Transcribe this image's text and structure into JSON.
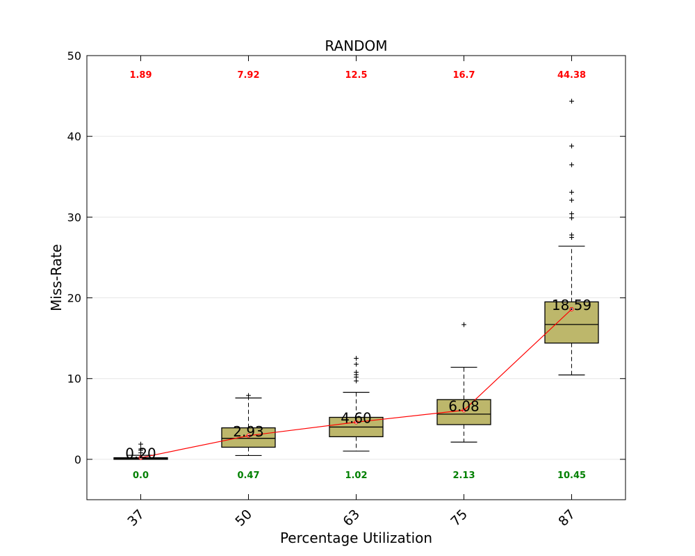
{
  "chart_data": {
    "type": "box",
    "title": "RANDOM",
    "xlabel": "Percentage Utilization",
    "ylabel": "Miss-Rate",
    "ylim": [
      -5,
      50
    ],
    "yticks": [
      0,
      10,
      20,
      30,
      40,
      50
    ],
    "categories": [
      "37",
      "50",
      "63",
      "75",
      "87"
    ],
    "grid": "horizontal",
    "colors": {
      "box_fill": "#bdb76b",
      "mean_line": "#ff0000",
      "max_text": "#ff0000",
      "min_text": "#008000"
    },
    "boxes": [
      {
        "category": "37",
        "q1": 0.0,
        "median": 0.1,
        "q3": 0.2,
        "whisker_low": 0.0,
        "whisker_high": 0.5,
        "mean": 0.2,
        "mean_label": "0.20",
        "max_label": "1.89",
        "min_label": "0.0",
        "fliers": [
          0.8,
          1.1,
          1.3,
          1.89
        ]
      },
      {
        "category": "50",
        "q1": 1.5,
        "median": 2.6,
        "q3": 3.9,
        "whisker_low": 0.47,
        "whisker_high": 7.6,
        "mean": 2.93,
        "mean_label": "2.93",
        "max_label": "7.92",
        "min_label": "0.47",
        "fliers": [
          7.92
        ]
      },
      {
        "category": "63",
        "q1": 2.8,
        "median": 4.0,
        "q3": 5.2,
        "whisker_low": 1.02,
        "whisker_high": 8.3,
        "mean": 4.6,
        "mean_label": "4.60",
        "max_label": "12.5",
        "min_label": "1.02",
        "fliers": [
          9.7,
          10.2,
          10.5,
          10.8,
          11.8,
          12.5
        ]
      },
      {
        "category": "75",
        "q1": 4.3,
        "median": 5.6,
        "q3": 7.4,
        "whisker_low": 2.13,
        "whisker_high": 11.4,
        "mean": 6.08,
        "mean_label": "6.08",
        "max_label": "16.7",
        "min_label": "2.13",
        "fliers": [
          16.7
        ]
      },
      {
        "category": "87",
        "q1": 14.4,
        "median": 16.7,
        "q3": 19.5,
        "whisker_low": 10.45,
        "whisker_high": 26.4,
        "mean": 18.59,
        "mean_label": "18.59",
        "max_label": "44.38",
        "min_label": "10.45",
        "fliers": [
          27.5,
          27.8,
          29.9,
          30.4,
          32.1,
          33.1,
          36.5,
          38.8,
          44.38
        ]
      }
    ]
  }
}
